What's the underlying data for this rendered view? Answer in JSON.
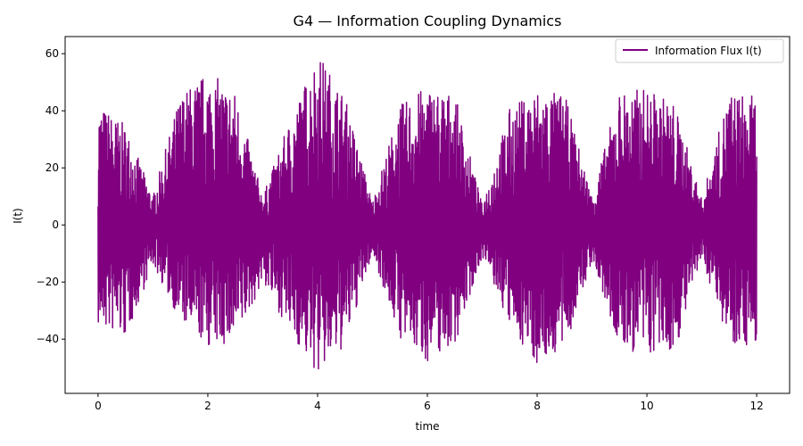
{
  "chart_data": {
    "type": "line",
    "title": "G4 — Information Coupling Dynamics",
    "xlabel": "time",
    "ylabel": "I(t)",
    "xlim": [
      -0.6,
      12.6
    ],
    "ylim": [
      -59,
      66
    ],
    "xticks": [
      0,
      2,
      4,
      6,
      8,
      10,
      12
    ],
    "yticks": [
      -40,
      -20,
      0,
      20,
      40,
      60
    ],
    "legend": {
      "position": "top-right"
    },
    "grid": false,
    "series": [
      {
        "name": "Information Flux I(t)",
        "color": "#800080",
        "x_start": 0,
        "x_end": 12,
        "envelope": {
          "x": [
            0,
            0.5,
            1.0,
            1.5,
            2.0,
            2.5,
            3.0,
            3.5,
            4.0,
            4.5,
            5.0,
            5.5,
            6.0,
            6.5,
            7.0,
            7.5,
            8.0,
            8.5,
            9.0,
            9.5,
            10.0,
            10.5,
            11.0,
            11.5,
            12.0
          ],
          "max": [
            43,
            35,
            10,
            46,
            54,
            47,
            10,
            37,
            61,
            45,
            8,
            42,
            49,
            46,
            7,
            41,
            48,
            46,
            10,
            47,
            48,
            43,
            9,
            47,
            45
          ],
          "min": [
            -36,
            -40,
            -14,
            -34,
            -43,
            -42,
            -20,
            -38,
            -53,
            -43,
            -10,
            -40,
            -48,
            -42,
            -11,
            -36,
            -49,
            -44,
            -13,
            -44,
            -46,
            -45,
            -12,
            -41,
            -43
          ]
        }
      }
    ]
  }
}
